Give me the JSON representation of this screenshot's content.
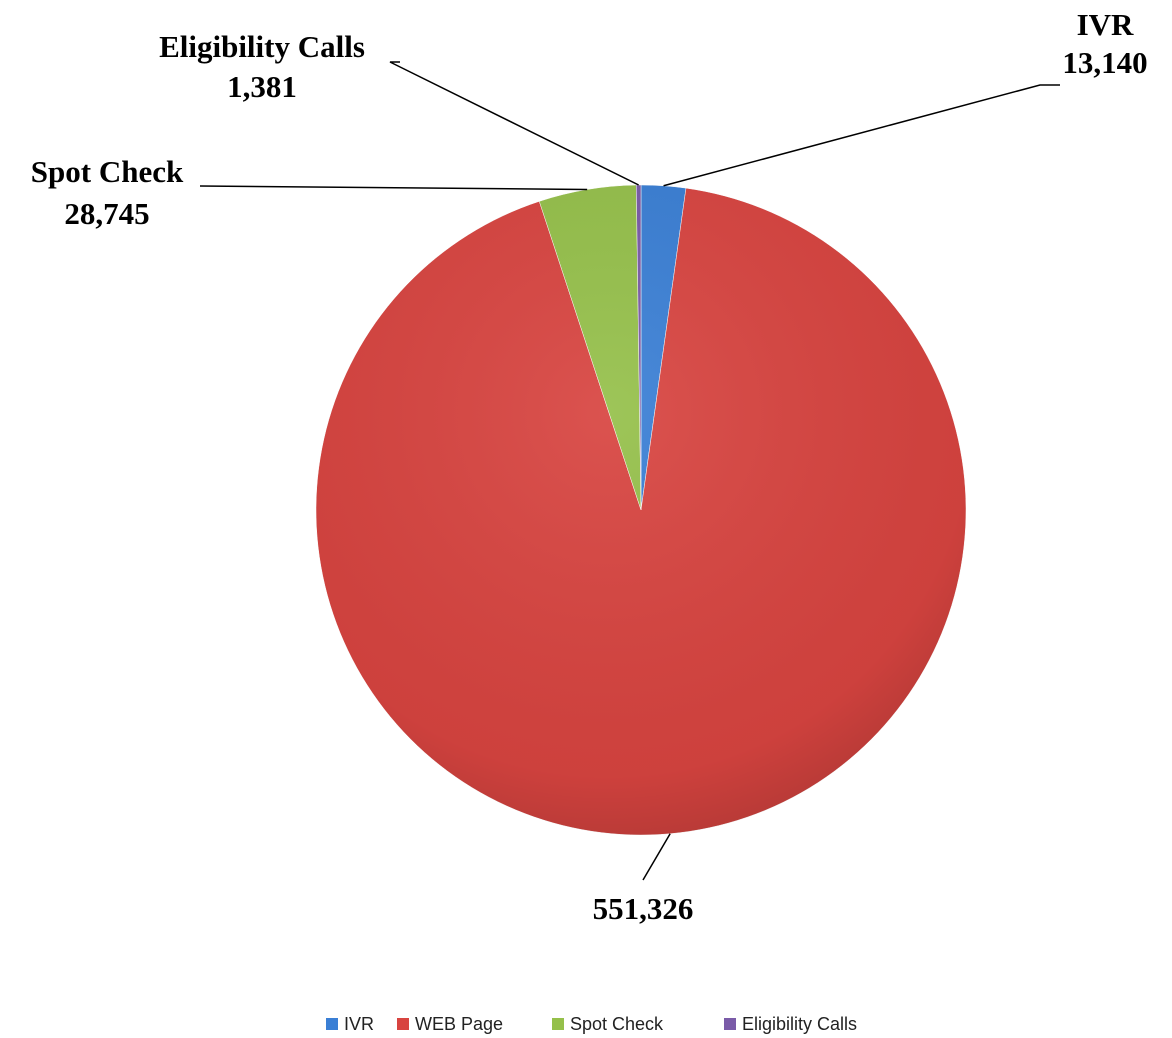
{
  "chart_data": {
    "type": "pie",
    "categories": [
      "IVR",
      "WEB Page",
      "Spot Check",
      "Eligibility Calls"
    ],
    "values": [
      13140,
      551326,
      28745,
      1381
    ],
    "value_labels": [
      "13,140",
      "551,326",
      "28,745",
      "1,381"
    ],
    "colors": [
      "#3a7fd5",
      "#d84440",
      "#95c04a",
      "#7a5ba8"
    ]
  }
}
